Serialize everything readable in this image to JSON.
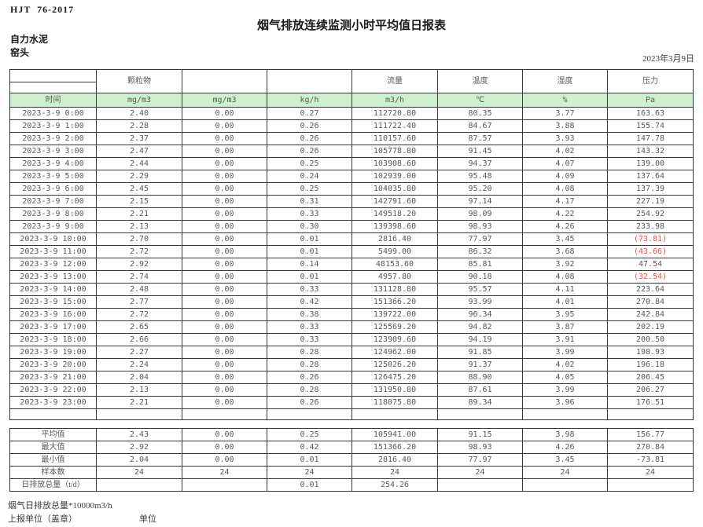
{
  "header": {
    "standard": "HJT  76-2017",
    "title": "烟气排放连续监测小时平均值日报表",
    "company": "自力水泥",
    "station": "窑头",
    "date": "2023年3月9日"
  },
  "table": {
    "group_headers": [
      "",
      "颗粒物",
      "",
      "",
      "流量",
      "温度",
      "湿度",
      "压力"
    ],
    "unit_row": [
      "时间",
      "mg/m3",
      "mg/m3",
      "kg/h",
      "m3/h",
      "℃",
      "%",
      "Pa"
    ],
    "rows": [
      {
        "time": "2023-3-9 0:00",
        "values": [
          "2.40",
          "0.00",
          "0.27",
          "112720.80",
          "80.35",
          "3.77",
          "163.63"
        ]
      },
      {
        "time": "2023-3-9 1:00",
        "values": [
          "2.28",
          "0.00",
          "0.26",
          "111722.40",
          "84.67",
          "3.88",
          "155.74"
        ]
      },
      {
        "time": "2023-3-9 2:00",
        "values": [
          "2.37",
          "0.00",
          "0.26",
          "110157.60",
          "87.57",
          "3.93",
          "147.78"
        ]
      },
      {
        "time": "2023-3-9 3:00",
        "values": [
          "2.47",
          "0.00",
          "0.26",
          "105778.80",
          "91.45",
          "4.02",
          "143.32"
        ]
      },
      {
        "time": "2023-3-9 4:00",
        "values": [
          "2.44",
          "0.00",
          "0.25",
          "103908.60",
          "94.37",
          "4.07",
          "139.00"
        ]
      },
      {
        "time": "2023-3-9 5:00",
        "values": [
          "2.29",
          "0.00",
          "0.24",
          "102939.00",
          "95.48",
          "4.09",
          "137.64"
        ]
      },
      {
        "time": "2023-3-9 6:00",
        "values": [
          "2.45",
          "0.00",
          "0.25",
          "104035.80",
          "95.20",
          "4.08",
          "137.39"
        ]
      },
      {
        "time": "2023-3-9 7:00",
        "values": [
          "2.15",
          "0.00",
          "0.31",
          "142791.60",
          "97.14",
          "4.17",
          "227.19"
        ]
      },
      {
        "time": "2023-3-9 8:00",
        "values": [
          "2.21",
          "0.00",
          "0.33",
          "149518.20",
          "98.09",
          "4.22",
          "254.92"
        ]
      },
      {
        "time": "2023-3-9 9:00",
        "values": [
          "2.13",
          "0.00",
          "0.30",
          "139398.60",
          "98.93",
          "4.26",
          "233.98"
        ]
      },
      {
        "time": "2023-3-9 10:00",
        "values": [
          "2.70",
          "0.00",
          "0.01",
          "2816.40",
          "77.97",
          "3.45",
          "(73.81)"
        ]
      },
      {
        "time": "2023-3-9 11:00",
        "values": [
          "2.72",
          "0.00",
          "0.01",
          "5499.00",
          "86.32",
          "3.68",
          "(43.66)"
        ]
      },
      {
        "time": "2023-3-9 12:00",
        "values": [
          "2.92",
          "0.00",
          "0.14",
          "48153.60",
          "85.81",
          "3.92",
          "47.54"
        ]
      },
      {
        "time": "2023-3-9 13:00",
        "values": [
          "2.74",
          "0.00",
          "0.01",
          "4957.80",
          "90.18",
          "4.08",
          "(32.54)"
        ]
      },
      {
        "time": "2023-3-9 14:00",
        "values": [
          "2.48",
          "0.00",
          "0.33",
          "131128.80",
          "95.57",
          "4.11",
          "223.64"
        ]
      },
      {
        "time": "2023-3-9 15:00",
        "values": [
          "2.77",
          "0.00",
          "0.42",
          "151366.20",
          "93.99",
          "4.01",
          "270.84"
        ]
      },
      {
        "time": "2023-3-9 16:00",
        "values": [
          "2.72",
          "0.00",
          "0.38",
          "139722.00",
          "96.34",
          "3.95",
          "242.84"
        ]
      },
      {
        "time": "2023-3-9 17:00",
        "values": [
          "2.65",
          "0.00",
          "0.33",
          "125569.20",
          "94.82",
          "3.87",
          "202.19"
        ]
      },
      {
        "time": "2023-3-9 18:00",
        "values": [
          "2.66",
          "0.00",
          "0.33",
          "123909.60",
          "94.19",
          "3.91",
          "200.50"
        ]
      },
      {
        "time": "2023-3-9 19:00",
        "values": [
          "2.27",
          "0.00",
          "0.28",
          "124962.00",
          "91.85",
          "3.99",
          "198.93"
        ]
      },
      {
        "time": "2023-3-9 20:00",
        "values": [
          "2.24",
          "0.00",
          "0.28",
          "125026.20",
          "91.37",
          "4.02",
          "196.18"
        ]
      },
      {
        "time": "2023-3-9 21:00",
        "values": [
          "2.04",
          "0.00",
          "0.26",
          "126475.20",
          "88.90",
          "4.05",
          "206.45"
        ]
      },
      {
        "time": "2023-3-9 22:00",
        "values": [
          "2.13",
          "0.00",
          "0.28",
          "131950.80",
          "87.61",
          "3.99",
          "206.27"
        ]
      },
      {
        "time": "2023-3-9 23:00",
        "values": [
          "2.21",
          "0.00",
          "0.26",
          "118075.80",
          "89.34",
          "3.96",
          "176.51"
        ]
      }
    ],
    "summary": [
      {
        "label": "平均值",
        "values": [
          "2.43",
          "0.00",
          "0.25",
          "105941.00",
          "91.15",
          "3.98",
          "156.77"
        ]
      },
      {
        "label": "最大值",
        "values": [
          "2.92",
          "0.00",
          "0.42",
          "151366.20",
          "98.93",
          "4.26",
          "270.84"
        ]
      },
      {
        "label": "最小值",
        "values": [
          "2.04",
          "0.00",
          "0.01",
          "2816.40",
          "77.97",
          "3.45",
          "-73.81"
        ]
      },
      {
        "label": "样本数",
        "values": [
          "24",
          "24",
          "24",
          "24",
          "24",
          "24",
          "24"
        ]
      },
      {
        "label": "日排放总量（t/d）",
        "values": [
          "",
          "",
          "0.01",
          "254.26",
          "",
          "",
          ""
        ]
      }
    ]
  },
  "footnotes": {
    "total_note": "烟气日排放总量*10000m3/h",
    "report_unit_label": "上报单位（盖章）",
    "unit_label": "单位"
  },
  "colors": {
    "header_fill": "#ccf2cc",
    "negative_value": "#e05555",
    "border": "#383838",
    "data_text": "#595959"
  }
}
